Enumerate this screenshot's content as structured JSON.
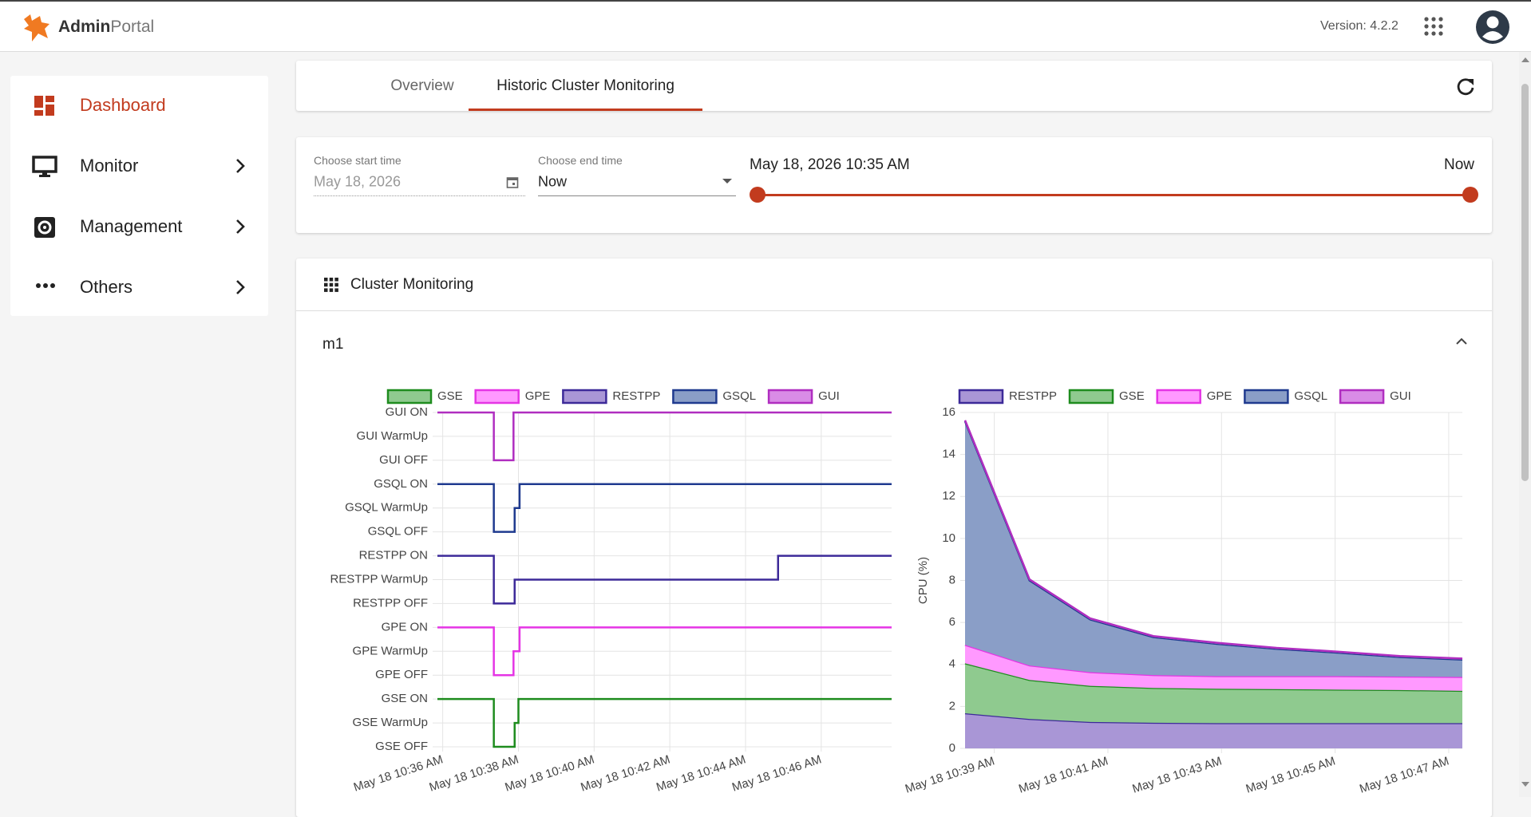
{
  "header": {
    "brand_primary": "Admin",
    "brand_secondary": "Portal",
    "version": "Version: 4.2.2"
  },
  "sidebar": {
    "items": [
      "Dashboard",
      "Monitor",
      "Management",
      "Others"
    ]
  },
  "tabs": {
    "items": [
      "Overview",
      "Historic Cluster Monitoring"
    ]
  },
  "filters": {
    "start_label": "Choose start time",
    "start_value": "May 18, 2026",
    "end_label": "Choose end time",
    "end_value": "Now",
    "range_start": "May 18, 2026 10:35 AM",
    "range_end": "Now"
  },
  "panel": {
    "title": "Cluster Monitoring",
    "section": "m1"
  },
  "chart_data": [
    {
      "type": "line",
      "grid": true,
      "xlim": [
        635.86,
        647.86
      ],
      "xticks": [
        {
          "value": 636,
          "label": "May 18 10:36 AM"
        },
        {
          "value": 638,
          "label": "May 18 10:38 AM"
        },
        {
          "value": 640,
          "label": "May 18 10:40 AM"
        },
        {
          "value": 642,
          "label": "May 18 10:42 AM"
        },
        {
          "value": 644,
          "label": "May 18 10:44 AM"
        },
        {
          "value": 646,
          "label": "May 18 10:46 AM"
        }
      ],
      "ylim": [
        0,
        14
      ],
      "yticks": [
        {
          "value": 14,
          "label": "GUI ON"
        },
        {
          "value": 13,
          "label": "GUI WarmUp"
        },
        {
          "value": 12,
          "label": "GUI OFF"
        },
        {
          "value": 11,
          "label": "GSQL ON"
        },
        {
          "value": 10,
          "label": "GSQL WarmUp"
        },
        {
          "value": 9,
          "label": "GSQL OFF"
        },
        {
          "value": 8,
          "label": "RESTPP ON"
        },
        {
          "value": 7,
          "label": "RESTPP WarmUp"
        },
        {
          "value": 6,
          "label": "RESTPP OFF"
        },
        {
          "value": 5,
          "label": "GPE ON"
        },
        {
          "value": 4,
          "label": "GPE WarmUp"
        },
        {
          "value": 3,
          "label": "GPE OFF"
        },
        {
          "value": 2,
          "label": "GSE ON"
        },
        {
          "value": 1,
          "label": "GSE WarmUp"
        },
        {
          "value": 0,
          "label": "GSE OFF"
        }
      ],
      "series": [
        {
          "name": "GSE",
          "color": "#1e8c1e",
          "fill_color": "#8fca8f",
          "x": [
            635.86,
            637.35,
            637.35,
            637.9,
            637.9,
            638.0,
            638.0,
            647.86
          ],
          "values": [
            2,
            2,
            0,
            0,
            1,
            1,
            2,
            2
          ]
        },
        {
          "name": "GPE",
          "color": "#e535e5",
          "fill_color": "#ff99ff",
          "x": [
            635.86,
            637.35,
            637.35,
            637.87,
            637.87,
            638.03,
            638.03,
            647.86
          ],
          "values": [
            5,
            5,
            3,
            3,
            4,
            4,
            5,
            5
          ]
        },
        {
          "name": "RESTPP",
          "color": "#3d2a99",
          "fill_color": "#a996d6",
          "x": [
            635.86,
            637.35,
            637.35,
            637.9,
            637.9,
            644.86,
            644.86,
            647.86
          ],
          "values": [
            8,
            8,
            6,
            6,
            7,
            7,
            8,
            8
          ]
        },
        {
          "name": "GSQL",
          "color": "#1f3a8f",
          "fill_color": "#8a9ec7",
          "x": [
            635.86,
            637.35,
            637.35,
            637.9,
            637.9,
            638.03,
            638.03,
            647.86
          ],
          "values": [
            11,
            11,
            9,
            9,
            10,
            10,
            11,
            11
          ]
        },
        {
          "name": "GUI",
          "color": "#b02ec0",
          "fill_color": "#d98ce6",
          "x": [
            635.86,
            637.35,
            637.35,
            637.87,
            637.87,
            647.86
          ],
          "values": [
            14,
            14,
            12,
            12,
            14,
            14
          ]
        }
      ]
    },
    {
      "type": "area",
      "stacked": true,
      "grid": true,
      "y_label": "CPU (%)",
      "xlim": [
        638.485,
        647.24
      ],
      "xticks": [
        {
          "value": 639,
          "label": "May 18 10:39 AM"
        },
        {
          "value": 641,
          "label": "May 18 10:41 AM"
        },
        {
          "value": 643,
          "label": "May 18 10:43 AM"
        },
        {
          "value": 645,
          "label": "May 18 10:45 AM"
        },
        {
          "value": 647,
          "label": "May 18 10:47 AM"
        }
      ],
      "ylim": [
        0,
        16
      ],
      "yticks": [
        0,
        2,
        4,
        6,
        8,
        10,
        12,
        14,
        16
      ],
      "x": [
        638.485,
        639.62,
        640.69,
        641.8,
        642.92,
        643.97,
        645.04,
        646.14,
        647.24
      ],
      "series": [
        {
          "name": "RESTPP",
          "color": "#3d2a99",
          "fill_color": "#a996d6",
          "values": [
            1.67,
            1.4,
            1.26,
            1.22,
            1.2,
            1.2,
            1.2,
            1.2,
            1.2
          ]
        },
        {
          "name": "GSE",
          "color": "#1e8c1e",
          "fill_color": "#8fca8f",
          "values": [
            2.38,
            1.86,
            1.72,
            1.66,
            1.64,
            1.62,
            1.6,
            1.58,
            1.54
          ]
        },
        {
          "name": "GPE",
          "color": "#e535e5",
          "fill_color": "#ff99ff",
          "values": [
            0.88,
            0.69,
            0.65,
            0.61,
            0.6,
            0.62,
            0.64,
            0.64,
            0.66
          ]
        },
        {
          "name": "GSQL",
          "color": "#1f3a8f",
          "fill_color": "#8a9ec7",
          "values": [
            10.65,
            4.05,
            2.51,
            1.81,
            1.54,
            1.3,
            1.12,
            0.93,
            0.83
          ]
        },
        {
          "name": "GUI",
          "color": "#b02ec0",
          "fill_color": "#d98ce6",
          "values": [
            0.05,
            0.05,
            0.05,
            0.05,
            0.05,
            0.05,
            0.05,
            0.05,
            0.05
          ]
        }
      ]
    }
  ]
}
